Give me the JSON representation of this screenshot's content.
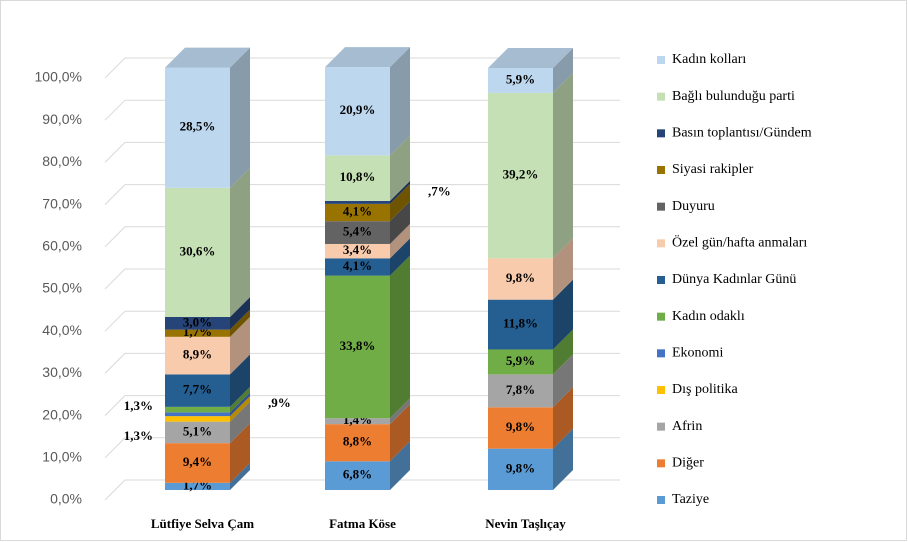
{
  "chart_data": {
    "type": "bar3d_stacked",
    "categories": [
      "Lütfiye Selva Çam",
      "Fatma Köse",
      "Nevin Taşlıçay"
    ],
    "series": [
      {
        "name": "Taziye",
        "color": "#5b9bd5",
        "values": [
          1.7,
          6.8,
          9.8
        ],
        "value_labels": [
          "1,7%",
          "6,8%",
          "9,8%"
        ]
      },
      {
        "name": "Diğer",
        "color": "#ed7d31",
        "values": [
          9.4,
          8.8,
          9.8
        ],
        "value_labels": [
          "9,4%",
          "8,8%",
          "9,8%"
        ]
      },
      {
        "name": "Afrin",
        "color": "#a5a5a5",
        "values": [
          5.1,
          1.4,
          7.8
        ],
        "value_labels": [
          "5,1%",
          "1,4%",
          "7,8%"
        ]
      },
      {
        "name": "Dış politika",
        "color": "#ffc000",
        "values": [
          1.3,
          null,
          null
        ],
        "value_labels": [
          "1,3%",
          null,
          null
        ]
      },
      {
        "name": "Ekonomi",
        "color": "#4472c4",
        "values": [
          0.9,
          null,
          null
        ],
        "value_labels": [
          ",9%",
          null,
          null
        ]
      },
      {
        "name": "Kadın odaklı",
        "color": "#70ad47",
        "values": [
          1.3,
          33.8,
          5.9
        ],
        "value_labels": [
          "1,3%",
          "33,8%",
          "5,9%"
        ]
      },
      {
        "name": "Dünya Kadınlar Günü",
        "color": "#255e91",
        "values": [
          7.7,
          4.1,
          11.8
        ],
        "value_labels": [
          "7,7%",
          "4,1%",
          "11,8%"
        ]
      },
      {
        "name": "Özel gün/hafta anmaları",
        "color": "#f8cbad",
        "values": [
          8.9,
          3.4,
          9.8
        ],
        "value_labels": [
          "8,9%",
          "3,4%",
          "9,8%"
        ]
      },
      {
        "name": "Duyuru",
        "color": "#636363",
        "values": [
          null,
          5.4,
          null
        ],
        "value_labels": [
          null,
          "5,4%",
          null
        ]
      },
      {
        "name": "Siyasi rakipler",
        "color": "#997300",
        "values": [
          1.7,
          4.1,
          null
        ],
        "value_labels": [
          "1,7%",
          "4,1%",
          null
        ]
      },
      {
        "name": "Basın toplantısı/Gündem",
        "color": "#264478",
        "values": [
          3.0,
          0.7,
          null
        ],
        "value_labels": [
          "3,0%",
          ",7%",
          null
        ]
      },
      {
        "name": "Bağlı bulunduğu parti",
        "color": "#c5e0b4",
        "values": [
          30.6,
          10.8,
          39.2
        ],
        "value_labels": [
          "30,6%",
          "10,8%",
          "39,2%"
        ]
      },
      {
        "name": "Kadın kolları",
        "color": "#bdd7ee",
        "values": [
          28.5,
          20.9,
          5.9
        ],
        "value_labels": [
          "28,5%",
          "20,9%",
          "5,9%"
        ]
      }
    ],
    "ylim": [
      0,
      100
    ],
    "yticks": [
      {
        "value": 0,
        "label": "0,0%"
      },
      {
        "value": 10,
        "label": "10,0%"
      },
      {
        "value": 20,
        "label": "20,0%"
      },
      {
        "value": 30,
        "label": "30,0%"
      },
      {
        "value": 40,
        "label": "40,0%"
      },
      {
        "value": 50,
        "label": "50,0%"
      },
      {
        "value": 60,
        "label": "60,0%"
      },
      {
        "value": 70,
        "label": "70,0%"
      },
      {
        "value": 80,
        "label": "80,0%"
      },
      {
        "value": 90,
        "label": "90,0%"
      },
      {
        "value": 100,
        "label": "100,0%"
      }
    ],
    "grid": true,
    "legend": "right"
  }
}
